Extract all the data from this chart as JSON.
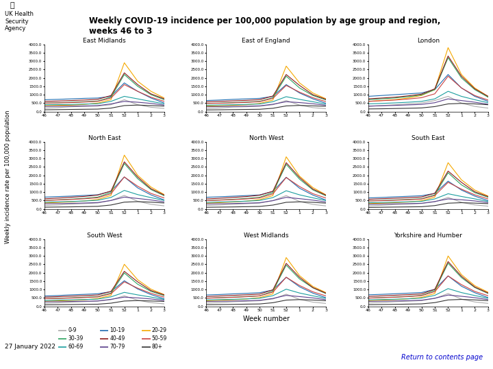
{
  "title": "Weekly COVID-19 incidence per 100,000 population by age group and region,\nweeks 46 to 3",
  "date_label": "27 January 2022",
  "return_link": "Return to contents page",
  "ylabel": "Weekly incidence rate per 100,000 population",
  "xlabel": "Week number",
  "weeks": [
    46,
    47,
    48,
    49,
    50,
    51,
    52,
    1,
    2,
    3
  ],
  "age_groups": [
    "0-9",
    "10-19",
    "20-29",
    "30-39",
    "40-49",
    "50-59",
    "60-69",
    "70-79",
    "80+"
  ],
  "age_colors": [
    "#aaaaaa",
    "#1f6cb0",
    "#f5a800",
    "#2ca25f",
    "#8b1a1a",
    "#c94040",
    "#1a9e9e",
    "#5a3e8a",
    "#333333"
  ],
  "regions": [
    "East Midlands",
    "East of England",
    "London",
    "North East",
    "North West",
    "South East",
    "South West",
    "West Midlands",
    "Yorkshire and Humber"
  ],
  "data": {
    "East Midlands": {
      "0-9": [
        200,
        230,
        280,
        300,
        320,
        400,
        700,
        400,
        250,
        180
      ],
      "10-19": [
        700,
        720,
        750,
        780,
        800,
        900,
        1700,
        1200,
        800,
        500
      ],
      "20-29": [
        350,
        360,
        380,
        420,
        500,
        700,
        2900,
        1800,
        1200,
        800
      ],
      "30-39": [
        500,
        520,
        550,
        580,
        620,
        850,
        2200,
        1500,
        1000,
        700
      ],
      "40-49": [
        600,
        620,
        650,
        680,
        720,
        950,
        2300,
        1600,
        1050,
        750
      ],
      "50-59": [
        500,
        510,
        530,
        560,
        600,
        800,
        1600,
        1200,
        850,
        600
      ],
      "60-69": [
        400,
        410,
        420,
        440,
        460,
        600,
        900,
        750,
        600,
        450
      ],
      "70-79": [
        300,
        310,
        320,
        330,
        350,
        450,
        600,
        550,
        480,
        380
      ],
      "80+": [
        100,
        110,
        120,
        130,
        140,
        200,
        350,
        380,
        350,
        320
      ]
    },
    "East of England": {
      "0-9": [
        180,
        210,
        260,
        280,
        310,
        400,
        650,
        380,
        230,
        160
      ],
      "10-19": [
        650,
        680,
        720,
        750,
        780,
        900,
        1600,
        1100,
        750,
        480
      ],
      "20-29": [
        320,
        340,
        370,
        400,
        480,
        680,
        2700,
        1700,
        1100,
        750
      ],
      "30-39": [
        480,
        500,
        530,
        560,
        600,
        820,
        2100,
        1400,
        950,
        680
      ],
      "40-49": [
        570,
        600,
        630,
        660,
        700,
        920,
        2200,
        1550,
        1000,
        720
      ],
      "50-59": [
        480,
        490,
        510,
        540,
        580,
        780,
        1550,
        1150,
        820,
        580
      ],
      "60-69": [
        370,
        390,
        400,
        420,
        445,
        580,
        880,
        720,
        580,
        430
      ],
      "70-79": [
        280,
        290,
        305,
        315,
        335,
        430,
        580,
        530,
        460,
        365
      ],
      "80+": [
        90,
        100,
        110,
        120,
        130,
        190,
        330,
        360,
        335,
        305
      ]
    },
    "London": {
      "0-9": [
        300,
        350,
        400,
        450,
        500,
        650,
        900,
        500,
        300,
        200
      ],
      "10-19": [
        900,
        950,
        1000,
        1050,
        1100,
        1300,
        2200,
        1400,
        900,
        600
      ],
      "20-29": [
        600,
        650,
        700,
        800,
        950,
        1300,
        3800,
        2200,
        1400,
        900
      ],
      "30-39": [
        700,
        750,
        800,
        880,
        980,
        1300,
        3200,
        2000,
        1300,
        850
      ],
      "40-49": [
        750,
        800,
        850,
        930,
        1030,
        1350,
        3300,
        2100,
        1350,
        900
      ],
      "50-59": [
        600,
        640,
        680,
        740,
        820,
        1050,
        2100,
        1400,
        950,
        680
      ],
      "60-69": [
        450,
        480,
        510,
        550,
        600,
        750,
        1200,
        900,
        700,
        520
      ],
      "70-79": [
        320,
        340,
        360,
        390,
        420,
        520,
        750,
        650,
        550,
        430
      ],
      "80+": [
        150,
        160,
        175,
        190,
        210,
        290,
        450,
        480,
        450,
        400
      ]
    },
    "North East": {
      "0-9": [
        200,
        230,
        280,
        310,
        350,
        500,
        800,
        450,
        270,
        180
      ],
      "10-19": [
        700,
        730,
        760,
        800,
        840,
        1050,
        1900,
        1250,
        830,
        530
      ],
      "20-29": [
        350,
        380,
        420,
        470,
        560,
        800,
        3200,
        2000,
        1300,
        850
      ],
      "30-39": [
        500,
        540,
        580,
        630,
        700,
        980,
        2700,
        1800,
        1150,
        780
      ],
      "40-49": [
        600,
        640,
        690,
        740,
        820,
        1060,
        2800,
        1900,
        1200,
        820
      ],
      "50-59": [
        500,
        530,
        560,
        600,
        660,
        900,
        1900,
        1350,
        920,
        650
      ],
      "60-69": [
        400,
        420,
        440,
        470,
        510,
        680,
        1100,
        850,
        670,
        500
      ],
      "70-79": [
        300,
        315,
        330,
        350,
        375,
        500,
        700,
        620,
        530,
        415
      ],
      "80+": [
        100,
        110,
        120,
        135,
        150,
        230,
        400,
        430,
        400,
        350
      ]
    },
    "North West": {
      "0-9": [
        200,
        230,
        275,
        305,
        345,
        490,
        790,
        440,
        265,
        175
      ],
      "10-19": [
        690,
        720,
        755,
        790,
        830,
        1040,
        1880,
        1230,
        820,
        520
      ],
      "20-29": [
        340,
        370,
        410,
        460,
        550,
        790,
        3100,
        1950,
        1270,
        830
      ],
      "30-39": [
        490,
        530,
        570,
        620,
        690,
        970,
        2650,
        1770,
        1130,
        770
      ],
      "40-49": [
        590,
        630,
        680,
        730,
        810,
        1050,
        2750,
        1870,
        1180,
        810
      ],
      "50-59": [
        490,
        520,
        550,
        590,
        650,
        890,
        1870,
        1330,
        905,
        640
      ],
      "60-69": [
        390,
        410,
        430,
        460,
        500,
        670,
        1080,
        835,
        658,
        490
      ],
      "70-79": [
        290,
        305,
        320,
        340,
        365,
        490,
        685,
        608,
        520,
        405
      ],
      "80+": [
        95,
        105,
        115,
        130,
        145,
        225,
        390,
        420,
        390,
        340
      ]
    },
    "South East": {
      "0-9": [
        180,
        210,
        255,
        285,
        320,
        420,
        680,
        390,
        235,
        160
      ],
      "10-19": [
        650,
        680,
        715,
        748,
        782,
        920,
        1650,
        1120,
        760,
        490
      ],
      "20-29": [
        315,
        340,
        370,
        405,
        485,
        695,
        2750,
        1730,
        1120,
        765
      ],
      "30-39": [
        475,
        502,
        532,
        565,
        604,
        832,
        2150,
        1430,
        965,
        690
      ],
      "40-49": [
        568,
        602,
        633,
        665,
        705,
        930,
        2250,
        1580,
        1020,
        735
      ],
      "50-59": [
        472,
        490,
        512,
        542,
        582,
        790,
        1580,
        1175,
        838,
        592
      ],
      "60-69": [
        365,
        387,
        399,
        422,
        447,
        592,
        900,
        738,
        596,
        440
      ],
      "70-79": [
        275,
        287,
        302,
        312,
        332,
        437,
        592,
        543,
        472,
        373
      ],
      "80+": [
        87,
        97,
        108,
        118,
        128,
        195,
        338,
        368,
        342,
        312
      ]
    },
    "South West": {
      "0-9": [
        170,
        200,
        245,
        275,
        305,
        390,
        620,
        360,
        215,
        145
      ],
      "10-19": [
        610,
        640,
        680,
        710,
        745,
        870,
        1520,
        1030,
        695,
        445
      ],
      "20-29": [
        295,
        320,
        350,
        385,
        460,
        650,
        2500,
        1580,
        1020,
        695
      ],
      "30-39": [
        450,
        475,
        505,
        538,
        575,
        785,
        1980,
        1315,
        886,
        633
      ],
      "40-49": [
        540,
        572,
        602,
        633,
        672,
        882,
        2080,
        1455,
        938,
        675
      ],
      "50-59": [
        450,
        468,
        488,
        518,
        555,
        748,
        1455,
        1080,
        770,
        545
      ],
      "60-69": [
        348,
        368,
        381,
        402,
        425,
        562,
        828,
        678,
        548,
        406
      ],
      "70-79": [
        262,
        273,
        288,
        298,
        316,
        415,
        545,
        500,
        435,
        345
      ],
      "80+": [
        83,
        92,
        103,
        112,
        122,
        185,
        312,
        340,
        315,
        288
      ]
    },
    "West Midlands": {
      "0-9": [
        190,
        220,
        268,
        296,
        330,
        435,
        720,
        408,
        248,
        168
      ],
      "10-19": [
        672,
        700,
        738,
        770,
        808,
        968,
        1730,
        1158,
        782,
        508
      ],
      "20-29": [
        330,
        356,
        390,
        430,
        516,
        738,
        2900,
        1825,
        1182,
        808
      ],
      "30-39": [
        484,
        514,
        545,
        580,
        620,
        900,
        2450,
        1628,
        1098,
        748
      ],
      "40-49": [
        578,
        614,
        648,
        682,
        724,
        978,
        2555,
        1725,
        1112,
        778
      ],
      "50-59": [
        480,
        506,
        532,
        568,
        618,
        840,
        1730,
        1238,
        862,
        612
      ],
      "60-69": [
        378,
        398,
        414,
        438,
        476,
        630,
        1018,
        790,
        622,
        466
      ],
      "70-79": [
        284,
        298,
        312,
        328,
        352,
        466,
        648,
        578,
        498,
        390
      ],
      "80+": [
        92,
        102,
        112,
        126,
        138,
        212,
        368,
        398,
        372,
        328
      ]
    },
    "Yorkshire and Humber": {
      "0-9": [
        195,
        225,
        272,
        300,
        338,
        468,
        758,
        428,
        258,
        172
      ],
      "10-19": [
        682,
        710,
        745,
        780,
        818,
        1008,
        1808,
        1195,
        808,
        518
      ],
      "20-29": [
        338,
        364,
        398,
        444,
        530,
        762,
        2995,
        1888,
        1228,
        838
      ],
      "30-39": [
        488,
        518,
        550,
        588,
        648,
        938,
        2565,
        1708,
        1118,
        762
      ],
      "40-49": [
        585,
        620,
        655,
        690,
        734,
        1008,
        2662,
        1788,
        1148,
        792
      ],
      "50-59": [
        485,
        512,
        540,
        575,
        630,
        868,
        1808,
        1290,
        885,
        628
      ],
      "60-69": [
        382,
        402,
        420,
        445,
        485,
        648,
        1052,
        815,
        640,
        478
      ],
      "70-79": [
        288,
        302,
        318,
        335,
        360,
        478,
        668,
        595,
        512,
        400
      ],
      "80+": [
        93,
        103,
        114,
        128,
        142,
        218,
        378,
        408,
        380,
        335
      ]
    }
  }
}
